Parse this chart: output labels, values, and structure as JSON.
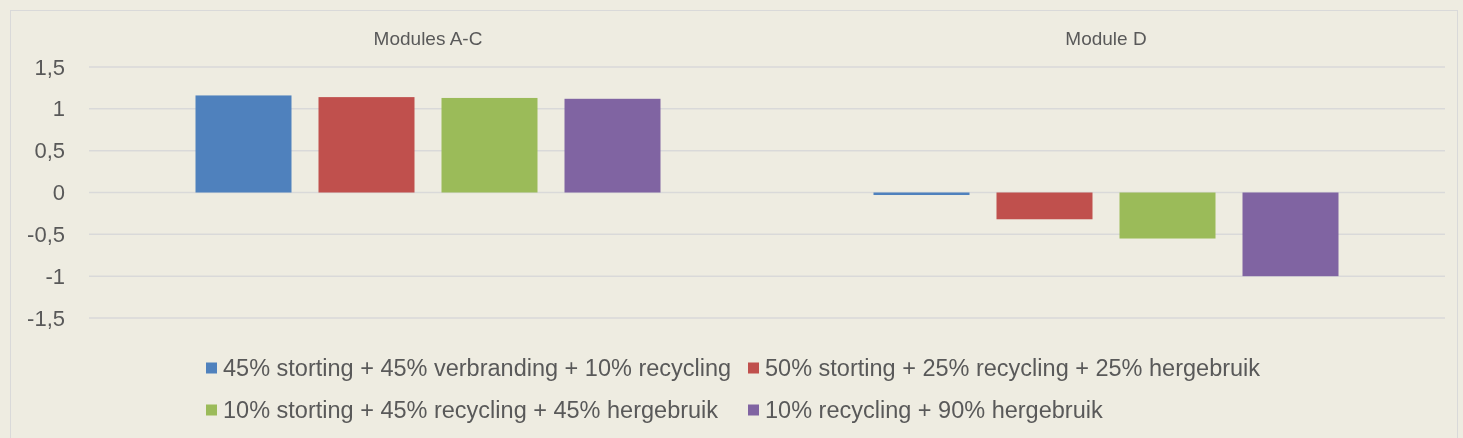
{
  "chart_data": {
    "type": "bar",
    "categories": [
      "Modules A-C",
      "Module D"
    ],
    "series": [
      {
        "name": "45% storting + 45% verbranding + 10% recycling",
        "color": "#4f81bd",
        "values": [
          1.16,
          -0.03
        ]
      },
      {
        "name": "50% storting + 25% recycling + 25% hergebruik",
        "color": "#c0504d",
        "values": [
          1.14,
          -0.32
        ]
      },
      {
        "name": "10% storting + 45% recycling + 45% hergebruik",
        "color": "#9bbb59",
        "values": [
          1.13,
          -0.55
        ]
      },
      {
        "name": "10% recycling + 90% hergebruik",
        "color": "#8064a2",
        "values": [
          1.12,
          -1.0
        ]
      }
    ],
    "ylim": [
      -1.5,
      1.5
    ],
    "yticks": [
      {
        "value": -1.5,
        "label": "-1,5"
      },
      -1,
      {
        "value": -0.5,
        "label": "-0,5"
      },
      0,
      {
        "value": 0.5,
        "label": "0,5"
      },
      1,
      {
        "value": 1.5,
        "label": "1,5"
      }
    ],
    "grid": "y",
    "legend": "bottom"
  }
}
